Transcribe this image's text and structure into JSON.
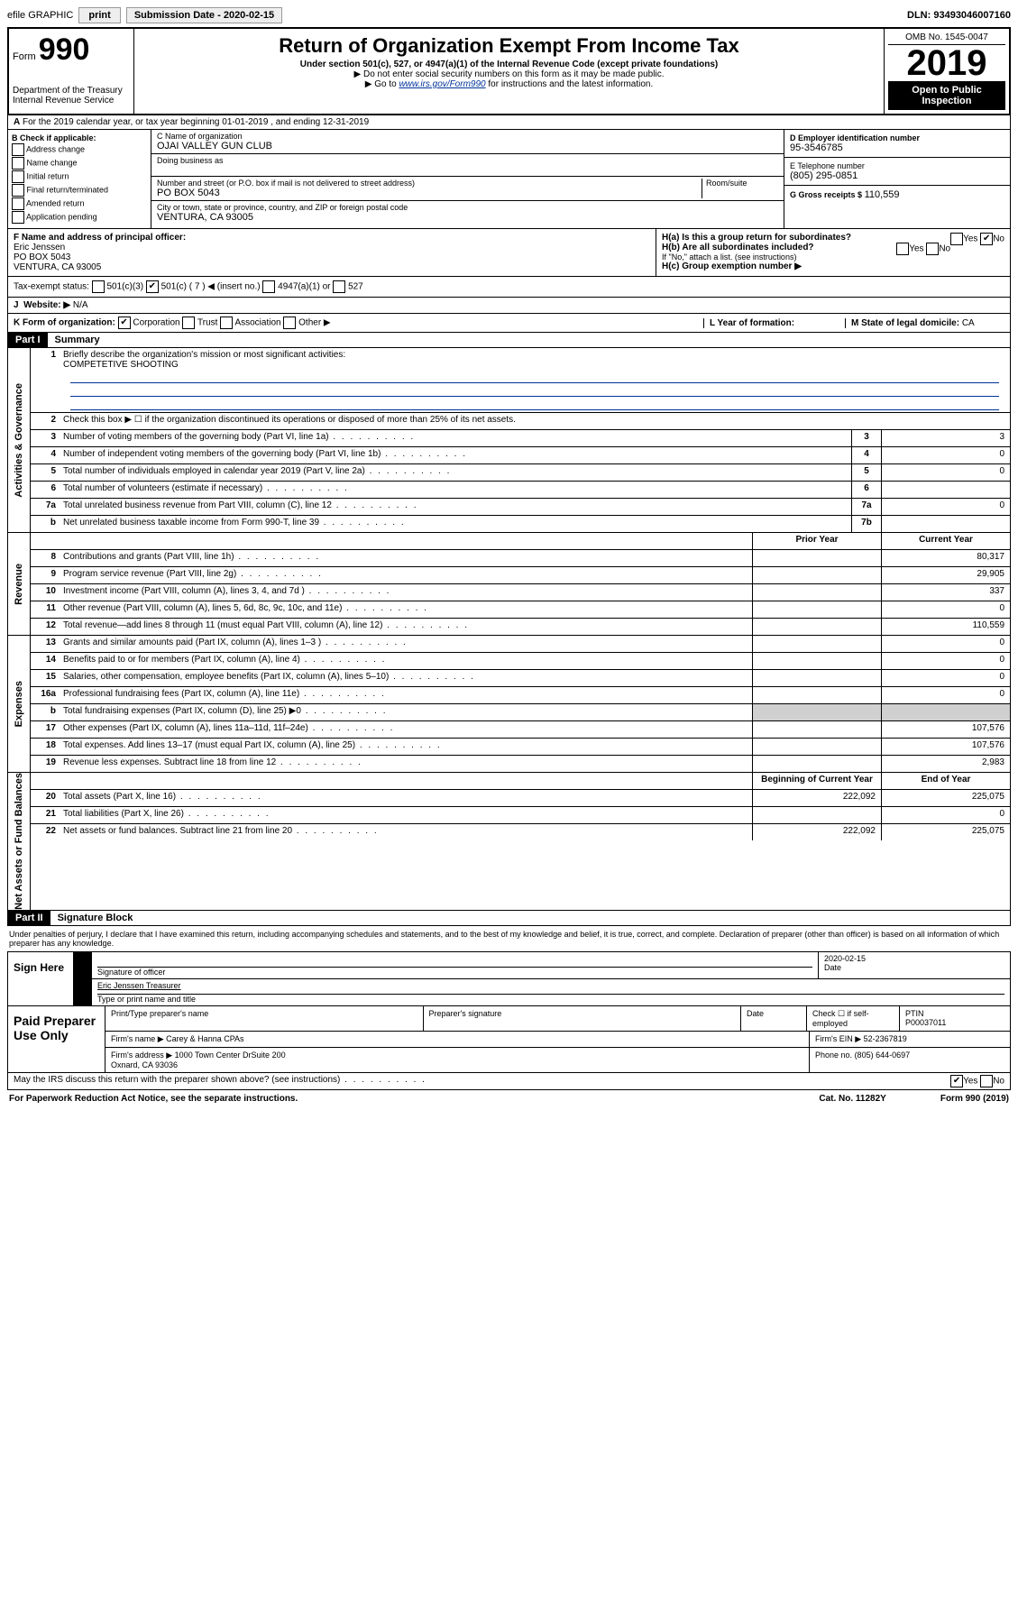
{
  "toolbar": {
    "efile": "efile GRAPHIC",
    "print": "print",
    "submission": "Submission Date - 2020-02-15",
    "dln": "DLN: 93493046007160"
  },
  "header": {
    "form_label": "Form",
    "form_num": "990",
    "title": "Return of Organization Exempt From Income Tax",
    "subtitle": "Under section 501(c), 527, or 4947(a)(1) of the Internal Revenue Code (except private foundations)",
    "note1": "▶ Do not enter social security numbers on this form as it may be made public.",
    "note2_pre": "▶ Go to ",
    "note2_link": "www.irs.gov/Form990",
    "note2_post": " for instructions and the latest information.",
    "dept": "Department of the Treasury\nInternal Revenue Service",
    "omb": "OMB No. 1545-0047",
    "year": "2019",
    "open": "Open to Public Inspection"
  },
  "section_a": "For the 2019 calendar year, or tax year beginning 01-01-2019    , and ending 12-31-2019",
  "box_b": {
    "label": "B Check if applicable:",
    "opts": [
      "Address change",
      "Name change",
      "Initial return",
      "Final return/terminated",
      "Amended return",
      "Application pending"
    ]
  },
  "box_c": {
    "name_label": "C Name of organization",
    "name": "OJAI VALLEY GUN CLUB",
    "dba_label": "Doing business as",
    "addr_label": "Number and street (or P.O. box if mail is not delivered to street address)",
    "room_label": "Room/suite",
    "addr": "PO BOX 5043",
    "city_label": "City or town, state or province, country, and ZIP or foreign postal code",
    "city": "VENTURA, CA  93005"
  },
  "box_d": {
    "label": "D Employer identification number",
    "value": "95-3546785"
  },
  "box_e": {
    "label": "E Telephone number",
    "value": "(805) 295-0851"
  },
  "box_g": {
    "label": "G Gross receipts $",
    "value": "110,559"
  },
  "box_f": {
    "label": "F  Name and address of principal officer:",
    "name": "Eric Jenssen",
    "addr1": "PO BOX 5043",
    "addr2": "VENTURA, CA  93005"
  },
  "box_h": {
    "a": "H(a)  Is this a group return for subordinates?",
    "b": "H(b)  Are all subordinates included?",
    "b_note": "If \"No,\" attach a list. (see instructions)",
    "c": "H(c)  Group exemption number ▶"
  },
  "tax_status": {
    "label": "Tax-exempt status:",
    "opts": [
      "501(c)(3)",
      "501(c) ( 7 ) ◀ (insert no.)",
      "4947(a)(1) or",
      "527"
    ]
  },
  "website": {
    "label": "Website: ▶",
    "value": "N/A"
  },
  "box_k": {
    "label": "K Form of organization:",
    "opts": [
      "Corporation",
      "Trust",
      "Association",
      "Other ▶"
    ]
  },
  "box_l": {
    "label": "L Year of formation:"
  },
  "box_m": {
    "label": "M State of legal domicile:",
    "value": "CA"
  },
  "part1": {
    "label": "Part I",
    "title": "Summary",
    "q1": "Briefly describe the organization's mission or most significant activities:",
    "mission": "COMPETETIVE SHOOTING",
    "q2": "Check this box ▶ ☐  if the organization discontinued its operations or disposed of more than 25% of its net assets.",
    "rows_gov": [
      {
        "n": "3",
        "d": "Number of voting members of the governing body (Part VI, line 1a)",
        "box": "3",
        "v": "3"
      },
      {
        "n": "4",
        "d": "Number of independent voting members of the governing body (Part VI, line 1b)",
        "box": "4",
        "v": "0"
      },
      {
        "n": "5",
        "d": "Total number of individuals employed in calendar year 2019 (Part V, line 2a)",
        "box": "5",
        "v": "0"
      },
      {
        "n": "6",
        "d": "Total number of volunteers (estimate if necessary)",
        "box": "6",
        "v": ""
      },
      {
        "n": "7a",
        "d": "Total unrelated business revenue from Part VIII, column (C), line 12",
        "box": "7a",
        "v": "0"
      },
      {
        "n": "b",
        "d": "Net unrelated business taxable income from Form 990-T, line 39",
        "box": "7b",
        "v": ""
      }
    ],
    "col_prior": "Prior Year",
    "col_current": "Current Year",
    "rows_rev": [
      {
        "n": "8",
        "d": "Contributions and grants (Part VIII, line 1h)",
        "p": "",
        "c": "80,317"
      },
      {
        "n": "9",
        "d": "Program service revenue (Part VIII, line 2g)",
        "p": "",
        "c": "29,905"
      },
      {
        "n": "10",
        "d": "Investment income (Part VIII, column (A), lines 3, 4, and 7d )",
        "p": "",
        "c": "337"
      },
      {
        "n": "11",
        "d": "Other revenue (Part VIII, column (A), lines 5, 6d, 8c, 9c, 10c, and 11e)",
        "p": "",
        "c": "0"
      },
      {
        "n": "12",
        "d": "Total revenue—add lines 8 through 11 (must equal Part VIII, column (A), line 12)",
        "p": "",
        "c": "110,559"
      }
    ],
    "rows_exp": [
      {
        "n": "13",
        "d": "Grants and similar amounts paid (Part IX, column (A), lines 1–3 )",
        "p": "",
        "c": "0"
      },
      {
        "n": "14",
        "d": "Benefits paid to or for members (Part IX, column (A), line 4)",
        "p": "",
        "c": "0"
      },
      {
        "n": "15",
        "d": "Salaries, other compensation, employee benefits (Part IX, column (A), lines 5–10)",
        "p": "",
        "c": "0"
      },
      {
        "n": "16a",
        "d": "Professional fundraising fees (Part IX, column (A), line 11e)",
        "p": "",
        "c": "0"
      },
      {
        "n": "b",
        "d": "Total fundraising expenses (Part IX, column (D), line 25) ▶0",
        "p": "shade",
        "c": "shade"
      },
      {
        "n": "17",
        "d": "Other expenses (Part IX, column (A), lines 11a–11d, 11f–24e)",
        "p": "",
        "c": "107,576"
      },
      {
        "n": "18",
        "d": "Total expenses. Add lines 13–17 (must equal Part IX, column (A), line 25)",
        "p": "",
        "c": "107,576"
      },
      {
        "n": "19",
        "d": "Revenue less expenses. Subtract line 18 from line 12",
        "p": "",
        "c": "2,983"
      }
    ],
    "col_begin": "Beginning of Current Year",
    "col_end": "End of Year",
    "rows_net": [
      {
        "n": "20",
        "d": "Total assets (Part X, line 16)",
        "p": "222,092",
        "c": "225,075"
      },
      {
        "n": "21",
        "d": "Total liabilities (Part X, line 26)",
        "p": "",
        "c": "0"
      },
      {
        "n": "22",
        "d": "Net assets or fund balances. Subtract line 21 from line 20",
        "p": "222,092",
        "c": "225,075"
      }
    ],
    "vtabs": {
      "gov": "Activities & Governance",
      "rev": "Revenue",
      "exp": "Expenses",
      "net": "Net Assets or Fund Balances"
    }
  },
  "part2": {
    "label": "Part II",
    "title": "Signature Block",
    "perjury": "Under penalties of perjury, I declare that I have examined this return, including accompanying schedules and statements, and to the best of my knowledge and belief, it is true, correct, and complete. Declaration of preparer (other than officer) is based on all information of which preparer has any knowledge."
  },
  "sign": {
    "here": "Sign Here",
    "sig_label": "Signature of officer",
    "date_label": "Date",
    "date": "2020-02-15",
    "name": "Eric Jenssen  Treasurer",
    "name_label": "Type or print name and title"
  },
  "prep": {
    "label": "Paid Preparer Use Only",
    "h1": "Print/Type preparer's name",
    "h2": "Preparer's signature",
    "h3": "Date",
    "h4": "Check ☐ if self-employed",
    "h5": "PTIN",
    "ptin": "P00037011",
    "firm_label": "Firm's name    ▶",
    "firm": "Carey & Hanna CPAs",
    "ein_label": "Firm's EIN ▶",
    "ein": "52-2367819",
    "addr_label": "Firm's address ▶",
    "addr": "1000 Town Center DrSuite 200\nOxnard, CA  93036",
    "phone_label": "Phone no.",
    "phone": "(805) 644-0697"
  },
  "discuss": "May the IRS discuss this return with the preparer shown above? (see instructions)",
  "footer": {
    "left": "For Paperwork Reduction Act Notice, see the separate instructions.",
    "mid": "Cat. No. 11282Y",
    "right": "Form 990 (2019)"
  }
}
